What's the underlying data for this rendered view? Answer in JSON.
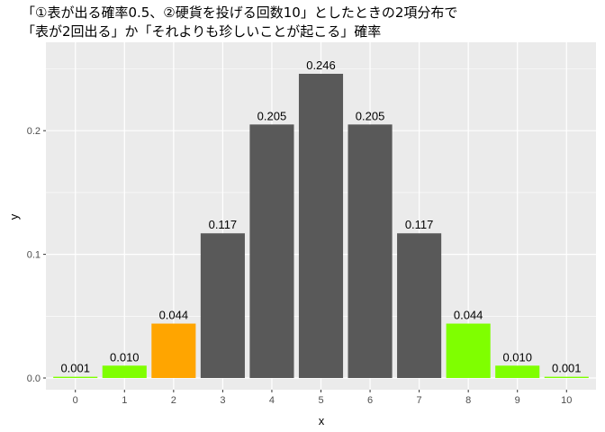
{
  "chart_data": {
    "type": "bar",
    "title_line1": "「①表が出る確率0.5、②硬貨を投げる回数10」としたときの2項分布で",
    "title_line2": "「表が2回出る」か「それよりも珍しいことが起こる」確率",
    "xlabel": "x",
    "ylabel": "y",
    "ylim": [
      0,
      0.258
    ],
    "y_ticks": [
      0.0,
      0.1,
      0.2
    ],
    "y_tick_labels": [
      "0.0",
      "0.1",
      "0.2"
    ],
    "categories": [
      "0",
      "1",
      "2",
      "3",
      "4",
      "5",
      "6",
      "7",
      "8",
      "9",
      "10"
    ],
    "values": [
      0.001,
      0.01,
      0.044,
      0.117,
      0.205,
      0.246,
      0.205,
      0.117,
      0.044,
      0.01,
      0.001
    ],
    "labels": [
      "0.001",
      "0.010",
      "0.044",
      "0.117",
      "0.205",
      "0.246",
      "0.205",
      "0.117",
      "0.044",
      "0.010",
      "0.001"
    ],
    "bar_colors": [
      "#7FFF00",
      "#7FFF00",
      "#FFA500",
      "#595959",
      "#595959",
      "#595959",
      "#595959",
      "#595959",
      "#7FFF00",
      "#7FFF00",
      "#7FFF00"
    ],
    "panel_background": "#EBEBEB",
    "grid_color": "#FFFFFF",
    "grid": true,
    "legend": "none"
  }
}
